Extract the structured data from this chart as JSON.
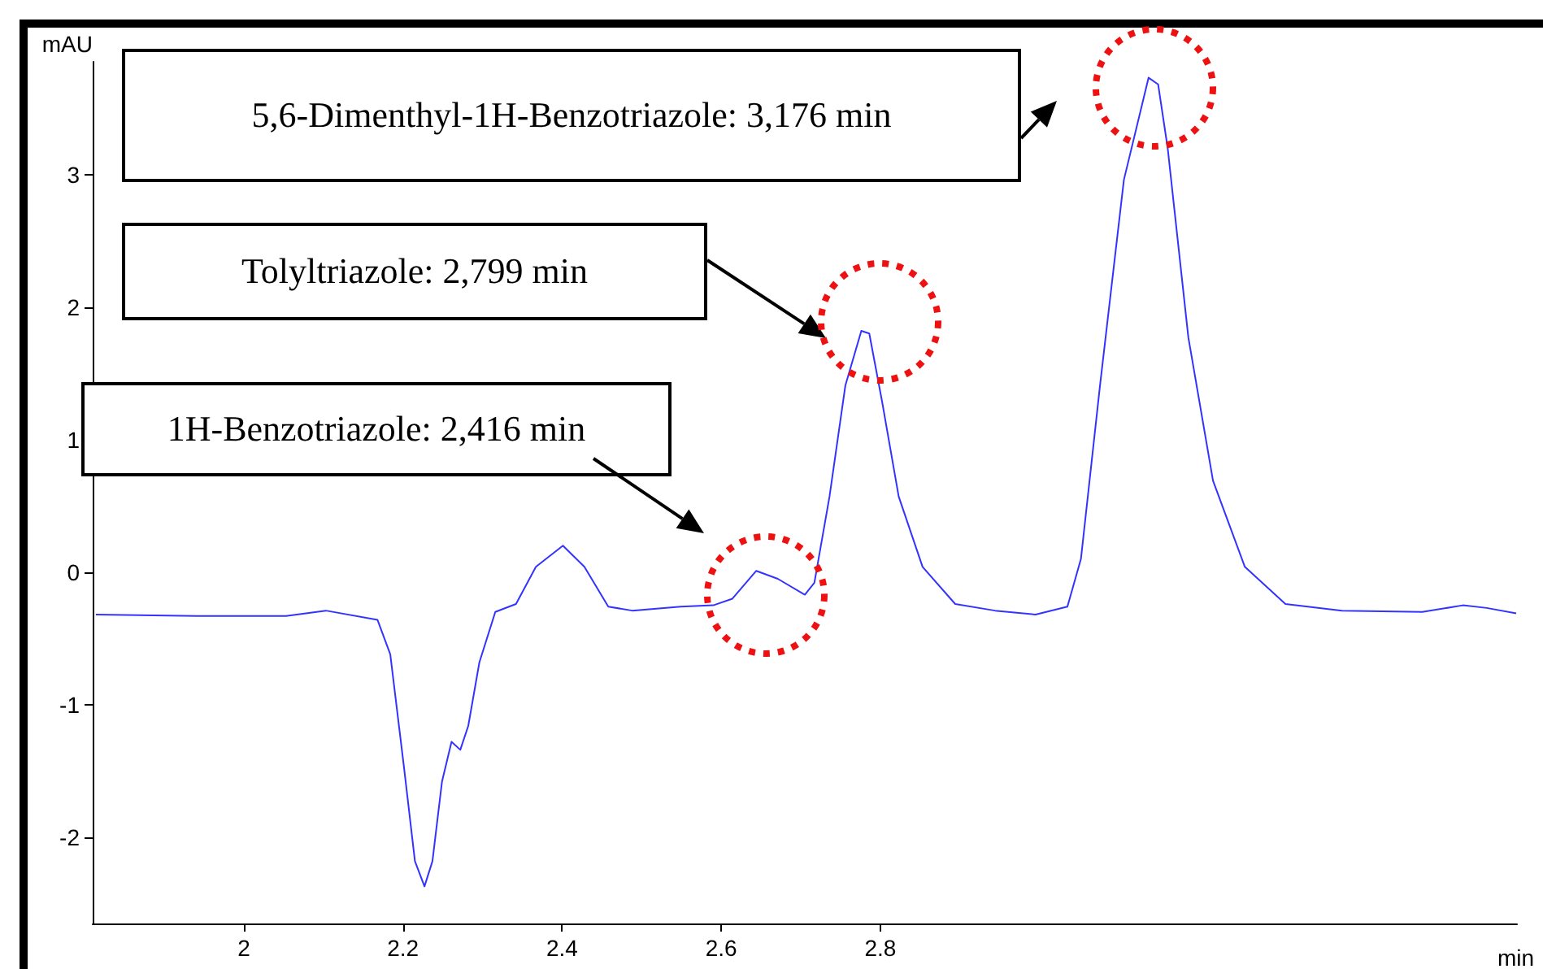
{
  "chart_data": {
    "type": "line",
    "xlabel": "min",
    "ylabel": "mAU",
    "xlim": [
      1.81,
      3.6
    ],
    "ylim": [
      -2.65,
      3.85
    ],
    "xticks": [
      2,
      2.2,
      2.4,
      2.6,
      2.8
    ],
    "yticks": [
      -2,
      -1,
      0,
      1,
      2,
      3
    ],
    "grid": false,
    "marker": "none",
    "series": [
      {
        "color": "#3333ff",
        "x": [
          1.814,
          1.941,
          2.053,
          2.103,
          2.168,
          2.184,
          2.201,
          2.215,
          2.227,
          2.237,
          2.249,
          2.261,
          2.272,
          2.282,
          2.296,
          2.316,
          2.342,
          2.367,
          2.401,
          2.428,
          2.458,
          2.488,
          2.549,
          2.59,
          2.614,
          2.644,
          2.671,
          2.705,
          2.717,
          2.736,
          2.756,
          2.776,
          2.786,
          2.802,
          2.823,
          2.853,
          2.894,
          2.944,
          2.995,
          3.035,
          3.052,
          3.076,
          3.106,
          3.137,
          3.149,
          3.161,
          3.187,
          3.218,
          3.258,
          3.309,
          3.38,
          3.481,
          3.532,
          3.562,
          3.599
        ],
        "values": [
          -0.32,
          -0.33,
          -0.33,
          -0.29,
          -0.36,
          -0.62,
          -1.46,
          -2.18,
          -2.37,
          -2.18,
          -1.58,
          -1.28,
          -1.34,
          -1.16,
          -0.68,
          -0.3,
          -0.24,
          0.04,
          0.2,
          0.04,
          -0.26,
          -0.29,
          -0.26,
          -0.25,
          -0.2,
          0.01,
          -0.05,
          -0.17,
          -0.08,
          0.57,
          1.41,
          1.82,
          1.8,
          1.29,
          0.57,
          0.04,
          -0.24,
          -0.29,
          -0.32,
          -0.26,
          0.1,
          1.41,
          2.96,
          3.73,
          3.68,
          3.2,
          1.77,
          0.69,
          0.04,
          -0.24,
          -0.29,
          -0.3,
          -0.25,
          -0.27,
          -0.31
        ]
      }
    ],
    "annotations": [
      "5,6-Dimenthyl-1H-Benzotriazole: 3,176 min",
      "Tolyltriazole: 2,799 min",
      "1H-Benzotriazole: 2,416 min"
    ]
  }
}
